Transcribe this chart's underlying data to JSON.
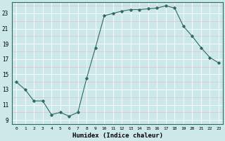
{
  "x": [
    0,
    1,
    2,
    3,
    4,
    5,
    6,
    7,
    8,
    9,
    10,
    11,
    12,
    13,
    14,
    15,
    16,
    17,
    18,
    19,
    20,
    21,
    22,
    23
  ],
  "y": [
    14.0,
    13.0,
    11.5,
    11.5,
    9.7,
    10.0,
    9.5,
    10.0,
    14.5,
    18.5,
    22.7,
    23.0,
    23.3,
    23.5,
    23.5,
    23.6,
    23.7,
    24.0,
    23.7,
    21.3,
    20.0,
    18.5,
    17.2,
    16.5
  ],
  "line_color": "#2d6b5e",
  "marker": "D",
  "markersize": 1.8,
  "linewidth": 0.8,
  "bg_color": "#cce8e8",
  "grid_color_major": "#ffffff",
  "grid_color_minor": "#e8b8b8",
  "xlabel": "Humidex (Indice chaleur)",
  "xlim": [
    -0.5,
    23.5
  ],
  "ylim": [
    8.5,
    24.5
  ],
  "yticks": [
    9,
    11,
    13,
    15,
    17,
    19,
    21,
    23
  ],
  "xticks": [
    0,
    1,
    2,
    3,
    4,
    5,
    6,
    7,
    8,
    9,
    10,
    11,
    12,
    13,
    14,
    15,
    16,
    17,
    18,
    19,
    20,
    21,
    22,
    23
  ],
  "xlabel_fontsize": 6.5,
  "tick_fontsize": 5.5
}
